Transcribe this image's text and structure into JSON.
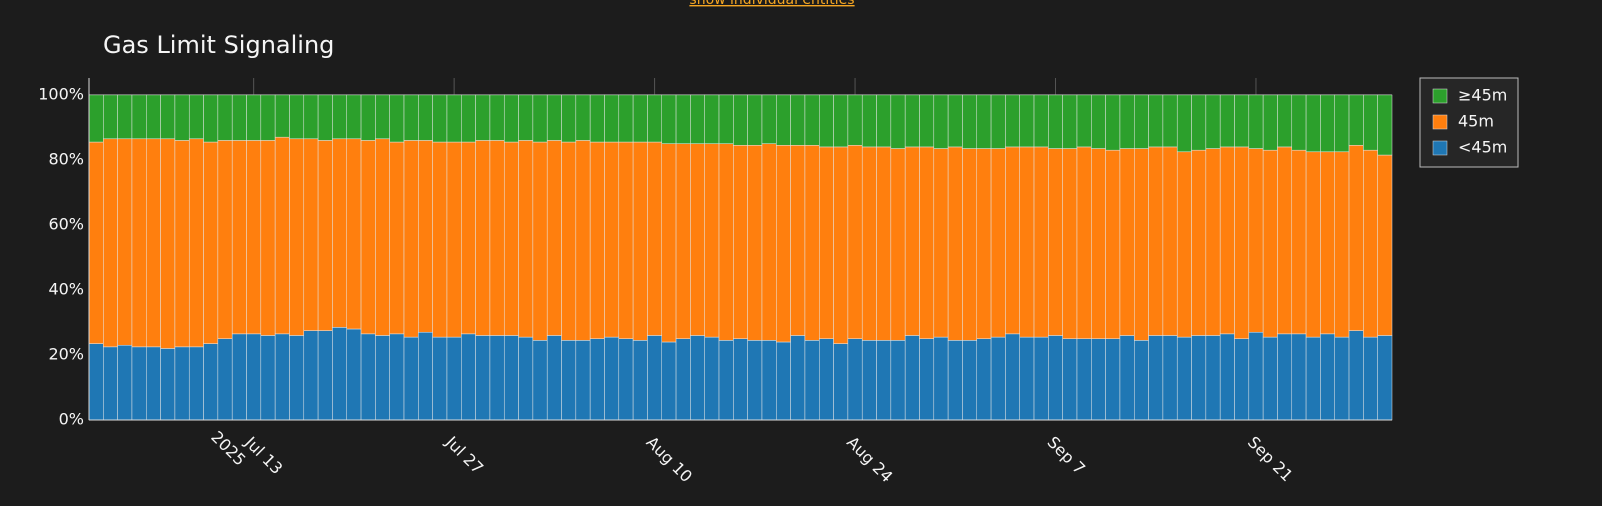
{
  "link": "show individual entities",
  "chart_data": {
    "type": "stacked_bar",
    "title": "Gas Limit Signaling",
    "x": [
      "2025-07-02",
      "2025-07-03",
      "2025-07-04",
      "2025-07-05",
      "2025-07-06",
      "2025-07-07",
      "2025-07-08",
      "2025-07-09",
      "2025-07-10",
      "2025-07-11",
      "2025-07-12",
      "2025-07-13",
      "2025-07-14",
      "2025-07-15",
      "2025-07-16",
      "2025-07-17",
      "2025-07-18",
      "2025-07-19",
      "2025-07-20",
      "2025-07-21",
      "2025-07-22",
      "2025-07-23",
      "2025-07-24",
      "2025-07-25",
      "2025-07-26",
      "2025-07-27",
      "2025-07-28",
      "2025-07-29",
      "2025-07-30",
      "2025-07-31",
      "2025-08-01",
      "2025-08-02",
      "2025-08-03",
      "2025-08-04",
      "2025-08-05",
      "2025-08-06",
      "2025-08-07",
      "2025-08-08",
      "2025-08-09",
      "2025-08-10",
      "2025-08-11",
      "2025-08-12",
      "2025-08-13",
      "2025-08-14",
      "2025-08-15",
      "2025-08-16",
      "2025-08-17",
      "2025-08-18",
      "2025-08-19",
      "2025-08-20",
      "2025-08-21",
      "2025-08-22",
      "2025-08-23",
      "2025-08-24",
      "2025-08-25",
      "2025-08-26",
      "2025-08-27",
      "2025-08-28",
      "2025-08-29",
      "2025-08-30",
      "2025-08-31",
      "2025-09-01",
      "2025-09-02",
      "2025-09-03",
      "2025-09-04",
      "2025-09-05",
      "2025-09-06",
      "2025-09-07",
      "2025-09-08",
      "2025-09-09",
      "2025-09-10",
      "2025-09-11",
      "2025-09-12",
      "2025-09-13",
      "2025-09-14",
      "2025-09-15",
      "2025-09-16",
      "2025-09-17",
      "2025-09-18",
      "2025-09-19",
      "2025-09-20",
      "2025-09-21",
      "2025-09-22",
      "2025-09-23",
      "2025-09-24",
      "2025-09-25",
      "2025-09-26",
      "2025-09-27",
      "2025-09-28",
      "2025-09-29",
      "2025-09-30"
    ],
    "series": [
      {
        "name": "<45m",
        "color": "#1f77b4",
        "values": [
          23.5,
          22.5,
          23,
          22.5,
          22.5,
          22,
          22.5,
          22.5,
          23.5,
          25,
          26.5,
          26.5,
          26,
          26.5,
          26,
          27.5,
          27.5,
          28.5,
          28,
          26.5,
          26,
          26.5,
          25.5,
          27,
          25.5,
          25.5,
          26.5,
          26,
          26,
          26,
          25.5,
          24.5,
          26,
          24.5,
          24.5,
          25,
          25.5,
          25,
          24.5,
          26,
          24,
          25,
          26,
          25.5,
          24.5,
          25,
          24.5,
          24.5,
          24,
          26,
          24.5,
          25,
          23.5,
          25,
          24.5,
          24.5,
          24.5,
          26,
          25,
          25.5,
          24.5,
          24.5,
          25,
          25.5,
          26.5,
          25.5,
          25.5,
          26,
          25,
          25,
          25,
          25,
          26,
          24.5,
          26,
          26,
          25.5,
          26,
          26,
          26.5,
          25,
          27,
          25.5,
          26.5,
          26.5,
          25.5,
          26.5,
          25.5,
          27.5,
          25.5,
          26
        ]
      },
      {
        "name": "45m",
        "color": "#ff7f0e",
        "values": [
          62,
          64,
          63.5,
          64,
          64,
          64.5,
          63.5,
          64,
          62,
          61,
          59.5,
          59.5,
          60,
          60.5,
          60.5,
          59,
          58.5,
          58,
          58.5,
          59.5,
          60.5,
          59,
          60.5,
          59,
          60,
          60,
          59,
          60,
          60,
          59.5,
          60.5,
          61,
          60,
          61,
          61.5,
          60.5,
          60,
          60.5,
          61,
          59.5,
          61,
          60,
          59,
          59.5,
          60.5,
          59.5,
          60,
          60.5,
          60.5,
          58.5,
          60,
          59,
          60.5,
          59.5,
          59.5,
          59.5,
          59,
          58,
          59,
          58,
          59.5,
          59,
          58.5,
          58,
          57.5,
          58.5,
          58.5,
          57.5,
          58.5,
          59,
          58.5,
          58,
          57.5,
          59,
          58,
          58,
          57,
          57,
          57.5,
          57.5,
          59,
          56.5,
          57.5,
          57.5,
          56.5,
          57,
          56,
          57,
          57,
          57.5,
          55.5
        ]
      },
      {
        "name": "≥45m",
        "color": "#2ca02c",
        "values": [
          14.5,
          13.5,
          13.5,
          13.5,
          13.5,
          13.5,
          14,
          13.5,
          14.5,
          14,
          14,
          14,
          14,
          13,
          13.5,
          13.5,
          14,
          13.5,
          13.5,
          14,
          13.5,
          14.5,
          14,
          14,
          14.5,
          14.5,
          14.5,
          14,
          14,
          14.5,
          14,
          14.5,
          14,
          14.5,
          14,
          14.5,
          14.5,
          14.5,
          14.5,
          14.5,
          15,
          15,
          15,
          15,
          15,
          15.5,
          15.5,
          15,
          15.5,
          15.5,
          15.5,
          16,
          16,
          15.5,
          16,
          16,
          16.5,
          16,
          16,
          16.5,
          16,
          16.5,
          16.5,
          16.5,
          16,
          16,
          16,
          16.5,
          16.5,
          16,
          16.5,
          17,
          16.5,
          16.5,
          16,
          16,
          17.5,
          17,
          16.5,
          16,
          16,
          16.5,
          17,
          16,
          17,
          17.5,
          17.5,
          17.5,
          15.5,
          17,
          18.5
        ]
      }
    ],
    "xlim": [
      "2025-07-01T12:00:00Z",
      "2025-09-30T12:00:00Z"
    ],
    "xticks": [
      {
        "value": "2025-07-13",
        "label": "Jul 13\n2025"
      },
      {
        "value": "2025-07-27",
        "label": "Jul 27"
      },
      {
        "value": "2025-08-10",
        "label": "Aug 10"
      },
      {
        "value": "2025-08-24",
        "label": "Aug 24"
      },
      {
        "value": "2025-09-07",
        "label": "Sep 7"
      },
      {
        "value": "2025-09-21",
        "label": "Sep 21"
      }
    ],
    "ylim": [
      0,
      105.2
    ],
    "yticks": [
      {
        "value": 0,
        "label": "0%"
      },
      {
        "value": 20,
        "label": "20%"
      },
      {
        "value": 40,
        "label": "40%"
      },
      {
        "value": 60,
        "label": "60%"
      },
      {
        "value": 80,
        "label": "80%"
      },
      {
        "value": 100,
        "label": "100%"
      }
    ],
    "grid": true,
    "legend": "right",
    "legend_order": "reversed"
  }
}
